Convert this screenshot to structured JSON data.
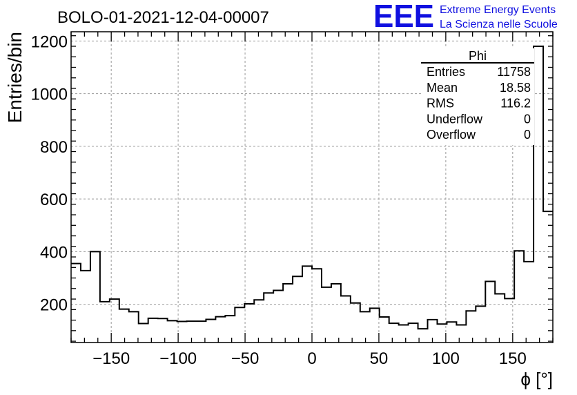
{
  "header": {
    "title": "BOLO-01-2021-12-04-00007",
    "logo_text": "EEE",
    "logo_line1": "Extreme Energy Events",
    "logo_line2": "La Scienza nelle Scuole",
    "logo_color": "#1010e0"
  },
  "stats": {
    "name": "Phi",
    "rows": [
      {
        "label": "Entries",
        "value": "11758"
      },
      {
        "label": "Mean",
        "value": "18.58"
      },
      {
        "label": "RMS",
        "value": "116.2"
      },
      {
        "label": "Underflow",
        "value": "0"
      },
      {
        "label": "Overflow",
        "value": "0"
      }
    ]
  },
  "chart_data": {
    "type": "histogram",
    "title": "BOLO-01-2021-12-04-00007",
    "xlabel": "ϕ [°]",
    "ylabel": "Entries/bin",
    "xlim": [
      -180,
      180
    ],
    "ylim": [
      55,
      1235
    ],
    "bin_width": 7.2,
    "xticks": [
      -150,
      -100,
      -50,
      0,
      50,
      100,
      150
    ],
    "yticks": [
      200,
      400,
      600,
      800,
      1000,
      1200
    ],
    "grid": true,
    "values": [
      355,
      328,
      400,
      210,
      220,
      182,
      172,
      127,
      147,
      146,
      138,
      135,
      136,
      136,
      143,
      153,
      157,
      188,
      202,
      217,
      243,
      253,
      278,
      306,
      345,
      335,
      265,
      278,
      232,
      205,
      172,
      185,
      152,
      128,
      122,
      128,
      107,
      142,
      125,
      133,
      122,
      175,
      193,
      287,
      240,
      222,
      403,
      362,
      1180,
      553
    ]
  }
}
